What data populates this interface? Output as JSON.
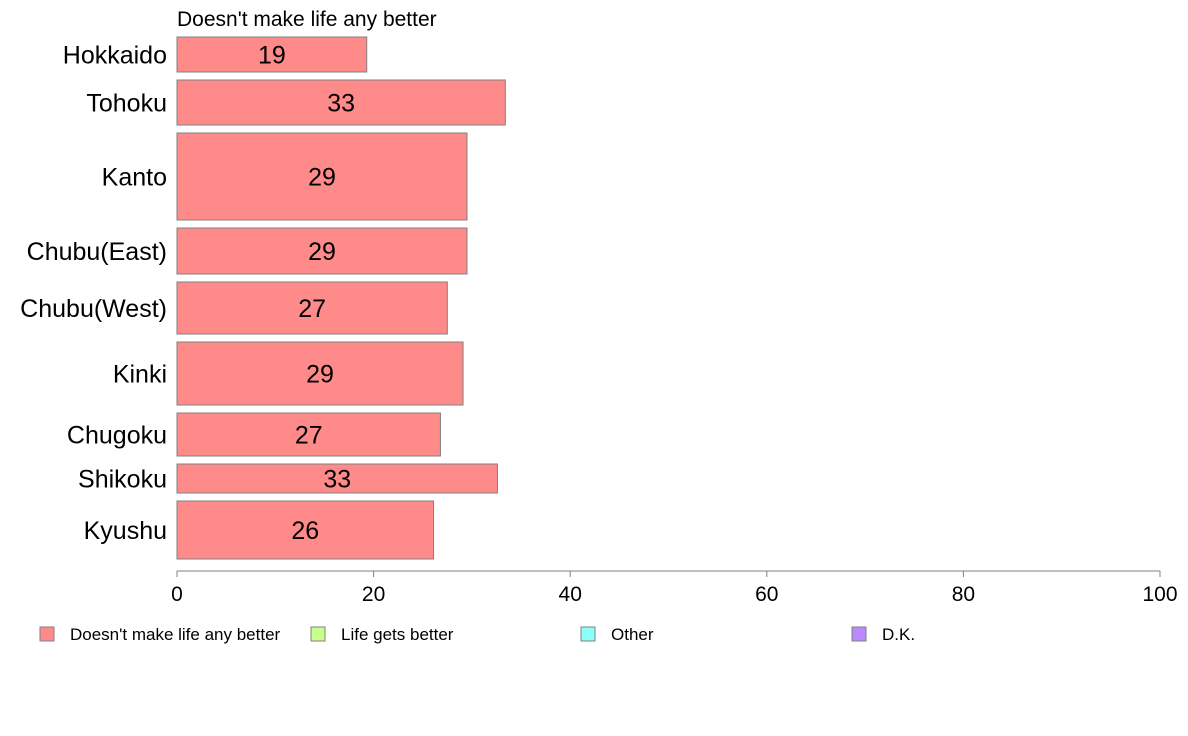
{
  "chart_data": {
    "type": "bar",
    "orientation": "horizontal",
    "title": "Doesn't make life any better",
    "categories": [
      "Hokkaido",
      "Tohoku",
      "Kanto",
      "Chubu(East)",
      "Chubu(West)",
      "Kinki",
      "Chugoku",
      "Shikoku",
      "Kyushu"
    ],
    "series": [
      {
        "name": "Doesn't make life any better",
        "color": "#ff8a8a",
        "values": [
          19.3,
          33.4,
          29.5,
          29.5,
          27.5,
          29.1,
          26.8,
          32.6,
          26.1
        ],
        "labels": [
          "19",
          "33",
          "29",
          "29",
          "27",
          "29",
          "27",
          "33",
          "26"
        ]
      }
    ],
    "xlim": [
      0,
      100
    ],
    "xticks": [
      "0",
      "20",
      "40",
      "60",
      "80",
      "100"
    ],
    "grid": false,
    "legend": {
      "position": "bottom",
      "items": [
        {
          "label": "Doesn't make life any better",
          "color": "#ff8a8a"
        },
        {
          "label": "Life gets better",
          "color": "#c8ff8a"
        },
        {
          "label": "Other",
          "color": "#8afffa"
        },
        {
          "label": "D.K.",
          "color": "#bb8aff"
        }
      ]
    }
  }
}
